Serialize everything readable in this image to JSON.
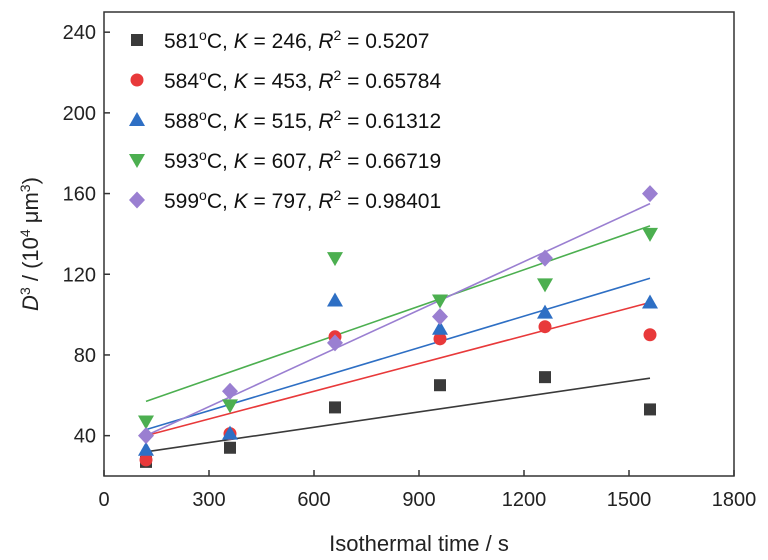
{
  "chart_data": {
    "type": "scatter",
    "xlabel": "Isothermal time / s",
    "ylabel_parts": [
      "D",
      "3",
      " / (10",
      "4",
      " μm",
      "3",
      ")"
    ],
    "xlim": [
      0,
      1800
    ],
    "ylim": [
      20,
      250
    ],
    "x_ticks": [
      0,
      300,
      600,
      900,
      1200,
      1500,
      1800
    ],
    "y_ticks": [
      40,
      80,
      120,
      160,
      200,
      240
    ],
    "x_tick_labels": [
      "0",
      "300",
      "600",
      "900",
      "1200",
      "1500",
      "1800"
    ],
    "y_tick_labels": [
      "40",
      "80",
      "120",
      "160",
      "200",
      "240"
    ],
    "legend_position": "top-left",
    "x": [
      120,
      360,
      660,
      960,
      1260,
      1560
    ],
    "series": [
      {
        "name_parts": [
          "581",
          "o",
          "C, ",
          "K",
          " = 246, ",
          "R",
          "2",
          " = 0.5207"
        ],
        "marker": "square",
        "color": "#3a3a3a",
        "values": [
          27,
          34,
          54,
          65,
          69,
          53
        ],
        "fit_line": [
          [
            120,
            32
          ],
          [
            1560,
            68.5
          ]
        ]
      },
      {
        "name_parts": [
          "584",
          "o",
          "C, ",
          "K",
          " = 453, ",
          "R",
          "2",
          " = 0.65784"
        ],
        "marker": "circle",
        "color": "#e8393a",
        "values": [
          28,
          41,
          89,
          88,
          94,
          90
        ],
        "fit_line": [
          [
            120,
            40
          ],
          [
            1560,
            106
          ]
        ]
      },
      {
        "name_parts": [
          "588",
          "o",
          "C, ",
          "K",
          " = 515, ",
          "R",
          "2",
          " = 0.61312"
        ],
        "marker": "triangle-up",
        "color": "#2e6fc4",
        "values": [
          33,
          41,
          107,
          93,
          101,
          106
        ],
        "fit_line": [
          [
            120,
            43
          ],
          [
            1560,
            118
          ]
        ]
      },
      {
        "name_parts": [
          "593",
          "o",
          "C, ",
          "K",
          " = 607, ",
          "R",
          "2",
          " = 0.66719"
        ],
        "marker": "triangle-down",
        "color": "#4caf50",
        "values": [
          47,
          55,
          128,
          107,
          115,
          140
        ],
        "fit_line": [
          [
            120,
            57
          ],
          [
            1560,
            144
          ]
        ]
      },
      {
        "name_parts": [
          "599",
          "o",
          "C, ",
          "K",
          " = 797, ",
          "R",
          "2",
          " = 0.98401"
        ],
        "marker": "diamond",
        "color": "#9a7fd1",
        "values": [
          40,
          62,
          86,
          99,
          128,
          160
        ],
        "fit_line": [
          [
            120,
            40
          ],
          [
            1560,
            155
          ]
        ]
      }
    ]
  }
}
